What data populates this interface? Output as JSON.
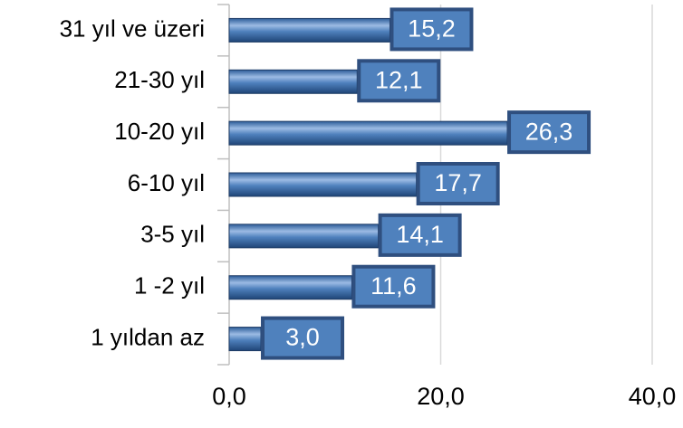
{
  "chart_data": {
    "type": "hbar",
    "categories": [
      "31 yıl ve üzeri",
      "21-30 yıl",
      "10-20 yıl",
      "6-10 yıl",
      "3-5 yıl",
      "1 -2 yıl",
      "1 yıldan az"
    ],
    "values": [
      15.2,
      12.1,
      26.3,
      17.7,
      14.1,
      11.6,
      3.0
    ],
    "value_labels": [
      "15,2",
      "12,1",
      "26,3",
      "17,7",
      "14,1",
      "11,6",
      "3,0"
    ],
    "color": "#4f81bd",
    "xlim": [
      0,
      40
    ],
    "xticks": [
      {
        "value": 0,
        "label": "0,0"
      },
      {
        "value": 20,
        "label": "20,0"
      },
      {
        "value": 40,
        "label": "40,0"
      }
    ],
    "grid": true
  }
}
